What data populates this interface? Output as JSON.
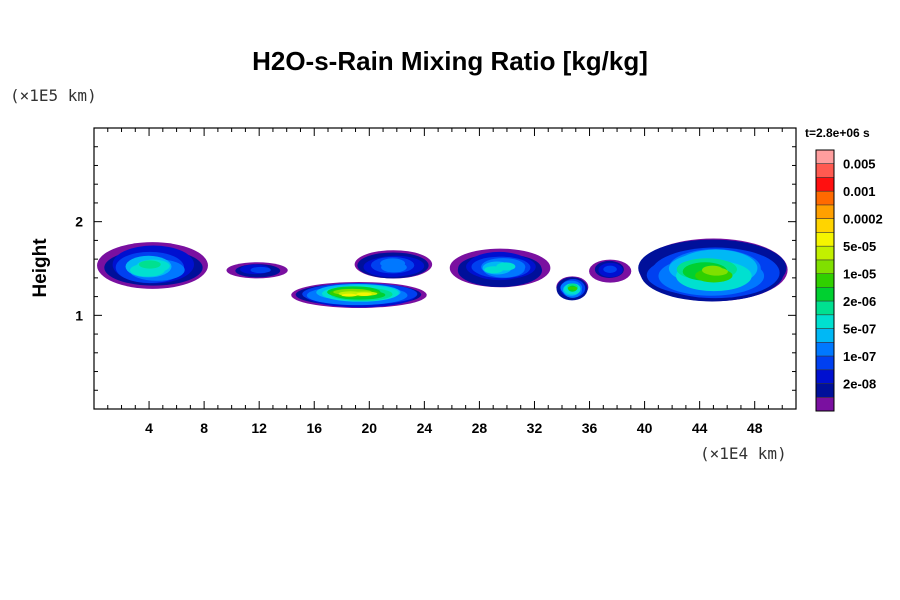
{
  "chart_data": {
    "type": "heatmap",
    "title": "H2O-s-Rain Mixing Ratio [kg/kg]",
    "ylabel": "Height",
    "x_unit_label": "(×1E4 km)",
    "y_unit_label": "(×1E5 km)",
    "time_label": "t=2.8e+06 s",
    "xlim": [
      0,
      51
    ],
    "ylim": [
      0,
      3
    ],
    "x_ticks": [
      4,
      8,
      12,
      16,
      20,
      24,
      28,
      32,
      36,
      40,
      44,
      48
    ],
    "y_ticks": [
      1,
      2
    ],
    "colorbar": {
      "labels": [
        "0.005",
        "0.001",
        "0.0002",
        "5e-05",
        "1e-05",
        "2e-06",
        "5e-07",
        "1e-07",
        "2e-08"
      ],
      "colors": [
        "#ff9e9e",
        "#ff5a50",
        "#ff1010",
        "#ff6a00",
        "#ffa000",
        "#ffd400",
        "#f5f500",
        "#c2f000",
        "#80e000",
        "#30d000",
        "#00d030",
        "#00e090",
        "#00e0d0",
        "#00b8f5",
        "#0078ff",
        "#0040f0",
        "#0010d0",
        "#00109a",
        "#7a10a0"
      ]
    },
    "features": [
      {
        "x": [
          0,
          8.5
        ],
        "y": [
          1.25,
          1.78
        ],
        "peak": 7
      },
      {
        "x": [
          9.7,
          14
        ],
        "y": [
          1.38,
          1.58
        ],
        "peak": 3
      },
      {
        "x": [
          14,
          24.5
        ],
        "y": [
          1.08,
          1.38
        ],
        "peak": 12
      },
      {
        "x": [
          18.5,
          25
        ],
        "y": [
          1.35,
          1.72
        ],
        "peak": 4
      },
      {
        "x": [
          26,
          33
        ],
        "y": [
          1.28,
          1.72
        ],
        "peak": 6
      },
      {
        "x": [
          33.5,
          36
        ],
        "y": [
          1.15,
          1.42
        ],
        "peak": 9
      },
      {
        "x": [
          36,
          39
        ],
        "y": [
          1.35,
          1.62
        ],
        "peak": 3
      },
      {
        "x": [
          39,
          51
        ],
        "y": [
          1.1,
          1.82
        ],
        "peak": 10
      }
    ]
  }
}
